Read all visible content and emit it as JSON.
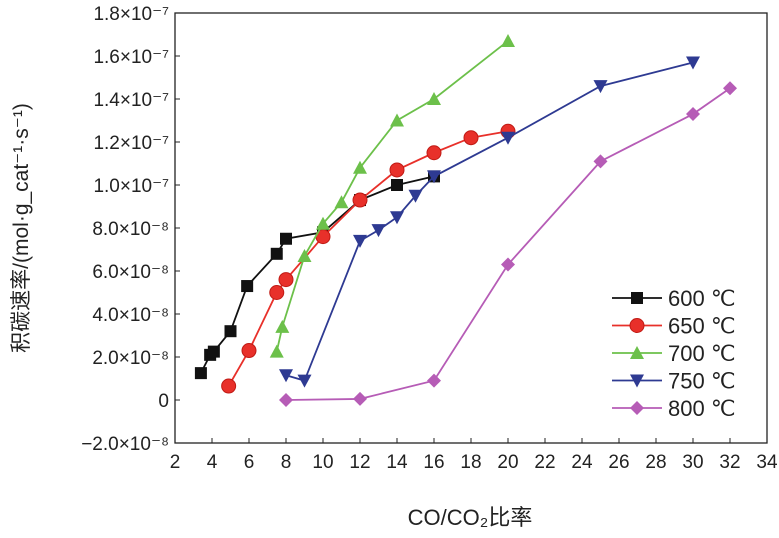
{
  "chart_data": {
    "type": "line",
    "xlabel": "CO/CO₂比率",
    "ylabel": "积碳速率/(mol·g_cat⁻¹·s⁻¹)",
    "xlim": [
      2,
      34
    ],
    "ylim": [
      -2e-08,
      1.8e-07
    ],
    "xticks": [
      "2",
      "4",
      "6",
      "8",
      "10",
      "12",
      "14",
      "16",
      "18",
      "20",
      "22",
      "24",
      "26",
      "28",
      "30",
      "32",
      "34"
    ],
    "yticks": [
      "−2.0×10⁻⁸",
      "0",
      "2.0×10⁻⁸",
      "4.0×10⁻⁸",
      "6.0×10⁻⁸",
      "8.0×10⁻⁸",
      "1.0×10⁻⁷",
      "1.2×10⁻⁷",
      "1.4×10⁻⁷",
      "1.6×10⁻⁷",
      "1.8×10⁻⁷"
    ],
    "legend_position": "bottom-right",
    "grid": false,
    "series": [
      {
        "name": "600 ℃",
        "color": "#111111",
        "marker": "square",
        "x": [
          3.4,
          3.9,
          4.1,
          5.0,
          5.9,
          7.5,
          8.0,
          10,
          12,
          14,
          16
        ],
        "y": [
          1.25e-08,
          2.1e-08,
          2.25e-08,
          3.2e-08,
          5.3e-08,
          6.8e-08,
          7.5e-08,
          7.8e-08,
          9.3e-08,
          1e-07,
          1.04e-07
        ]
      },
      {
        "name": "650 ℃",
        "color": "#e8302a",
        "marker": "circle",
        "x": [
          4.9,
          6.0,
          7.5,
          8.0,
          10,
          12,
          14,
          16,
          18,
          20
        ],
        "y": [
          6.5e-09,
          2.3e-08,
          5e-08,
          5.6e-08,
          7.6e-08,
          9.3e-08,
          1.07e-07,
          1.15e-07,
          1.22e-07,
          1.25e-07
        ]
      },
      {
        "name": "700 ℃",
        "color": "#6cc04a",
        "marker": "triangle-up",
        "x": [
          7.5,
          7.8,
          9,
          10,
          11,
          12,
          14,
          16,
          20
        ],
        "y": [
          2.25e-08,
          3.4e-08,
          6.7e-08,
          8.2e-08,
          9.2e-08,
          1.08e-07,
          1.3e-07,
          1.4e-07,
          1.67e-07
        ]
      },
      {
        "name": "750 ℃",
        "color": "#2e3a92",
        "marker": "triangle-down",
        "x": [
          8,
          9,
          12,
          13,
          14,
          15,
          16,
          20,
          25,
          30
        ],
        "y": [
          1.15e-08,
          9e-09,
          7.4e-08,
          7.9e-08,
          8.5e-08,
          9.5e-08,
          1.04e-07,
          1.22e-07,
          1.46e-07,
          1.57e-07
        ]
      },
      {
        "name": "800 ℃",
        "color": "#b65cb6",
        "marker": "diamond",
        "x": [
          8,
          12,
          16,
          20,
          25,
          30,
          32
        ],
        "y": [
          0,
          5e-10,
          9e-09,
          6.3e-08,
          1.11e-07,
          1.33e-07,
          1.45e-07
        ]
      }
    ]
  }
}
